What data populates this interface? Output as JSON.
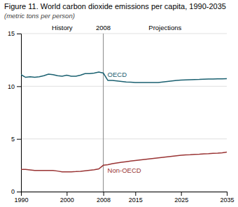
{
  "chart_data": {
    "type": "line",
    "title": "Figure 11. World carbon dioxide emissions per capita, 1990-2035",
    "subtitle": "(metric tons per person)",
    "annotations": [
      "History",
      "2008",
      "Projections"
    ],
    "divider": 2008,
    "x": [
      1990,
      1991,
      1992,
      1993,
      1994,
      1995,
      1996,
      1997,
      1998,
      1999,
      2000,
      2001,
      2002,
      2003,
      2004,
      2005,
      2006,
      2007,
      2008,
      2009,
      2010,
      2011,
      2012,
      2013,
      2014,
      2015,
      2016,
      2017,
      2018,
      2019,
      2020,
      2021,
      2022,
      2023,
      2024,
      2025,
      2026,
      2027,
      2028,
      2029,
      2030,
      2031,
      2032,
      2033,
      2034,
      2035
    ],
    "series": [
      {
        "name": "OECD",
        "color": "#1a6070",
        "values": [
          11.1,
          10.85,
          10.9,
          10.85,
          10.9,
          11.0,
          11.15,
          11.1,
          11.0,
          10.95,
          11.05,
          10.95,
          10.95,
          11.05,
          11.2,
          11.2,
          11.25,
          11.35,
          11.25,
          10.55,
          10.55,
          10.5,
          10.45,
          10.4,
          10.38,
          10.36,
          10.35,
          10.35,
          10.35,
          10.35,
          10.35,
          10.4,
          10.45,
          10.5,
          10.55,
          10.58,
          10.6,
          10.62,
          10.64,
          10.65,
          10.67,
          10.68,
          10.69,
          10.7,
          10.71,
          10.72
        ]
      },
      {
        "name": "Non-OECD",
        "color": "#993333",
        "values": [
          2.1,
          2.1,
          2.05,
          2.0,
          2.0,
          2.0,
          2.0,
          2.0,
          1.95,
          1.88,
          1.88,
          1.88,
          1.9,
          1.93,
          1.98,
          2.03,
          2.08,
          2.15,
          2.5,
          2.55,
          2.65,
          2.72,
          2.78,
          2.84,
          2.9,
          2.95,
          3.0,
          3.05,
          3.1,
          3.15,
          3.2,
          3.25,
          3.3,
          3.35,
          3.4,
          3.45,
          3.48,
          3.5,
          3.53,
          3.55,
          3.58,
          3.6,
          3.63,
          3.65,
          3.68,
          3.75
        ]
      }
    ],
    "xlim": [
      1990,
      2035
    ],
    "ylim": [
      0,
      15
    ],
    "xticks": [
      1990,
      2000,
      2008,
      2015,
      2025,
      2035
    ],
    "yticks": [
      0,
      5,
      10,
      15
    ],
    "grid": true
  }
}
